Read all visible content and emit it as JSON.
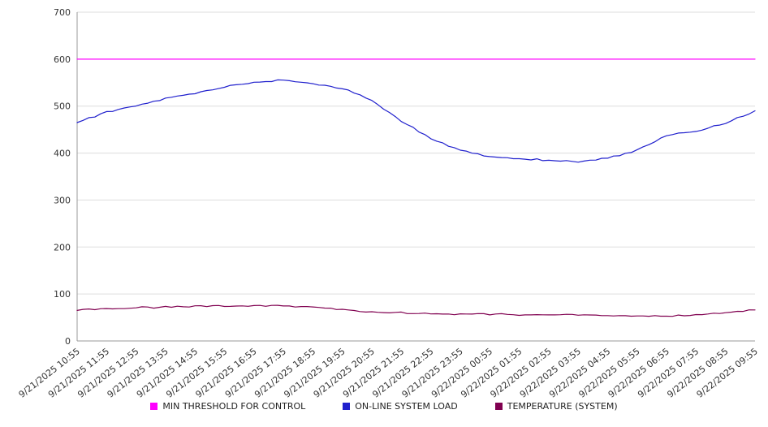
{
  "chart_data": {
    "type": "line",
    "title": "",
    "xlabel": "",
    "ylabel": "",
    "ylim": [
      0,
      700
    ],
    "ytick_interval": 100,
    "grid": true,
    "legend_position": "bottom",
    "x": [
      "9/21/2025 10:55",
      "9/21/2025 11:55",
      "9/21/2025 12:55",
      "9/21/2025 13:55",
      "9/21/2025 14:55",
      "9/21/2025 15:55",
      "9/21/2025 16:55",
      "9/21/2025 17:55",
      "9/21/2025 18:55",
      "9/21/2025 19:55",
      "9/21/2025 20:55",
      "9/21/2025 21:55",
      "9/21/2025 22:55",
      "9/21/2025 23:55",
      "9/22/2025 00:55",
      "9/22/2025 01:55",
      "9/22/2025 02:55",
      "9/22/2025 03:55",
      "9/22/2025 04:55",
      "9/22/2025 05:55",
      "9/22/2025 06:55",
      "9/22/2025 07:55",
      "9/22/2025 08:55",
      "9/22/2025 09:55"
    ],
    "series": [
      {
        "id": "min-threshold-line",
        "name": "MIN THRESHOLD FOR CONTROL",
        "color": "#ff00ff",
        "values": [
          600,
          600,
          600,
          600,
          600,
          600,
          600,
          600,
          600,
          600,
          600,
          600,
          600,
          600,
          600,
          600,
          600,
          600,
          600,
          600,
          600,
          600,
          600,
          600
        ]
      },
      {
        "id": "system-load-line",
        "name": "ON-LINE SYSTEM LOAD",
        "color": "#2020cd",
        "values": [
          465,
          487,
          500,
          516,
          527,
          541,
          550,
          556,
          548,
          538,
          512,
          468,
          432,
          405,
          393,
          388,
          385,
          382,
          389,
          406,
          438,
          447,
          464,
          490
        ]
      },
      {
        "id": "temperature-line",
        "name": "TEMPERATURE (SYSTEM)",
        "color": "#800050",
        "values": [
          65,
          69,
          71,
          72,
          74,
          75,
          75,
          74,
          73,
          66,
          62,
          60,
          58,
          57,
          57,
          56,
          56,
          55,
          54,
          53,
          53,
          55,
          60,
          66
        ]
      }
    ]
  }
}
